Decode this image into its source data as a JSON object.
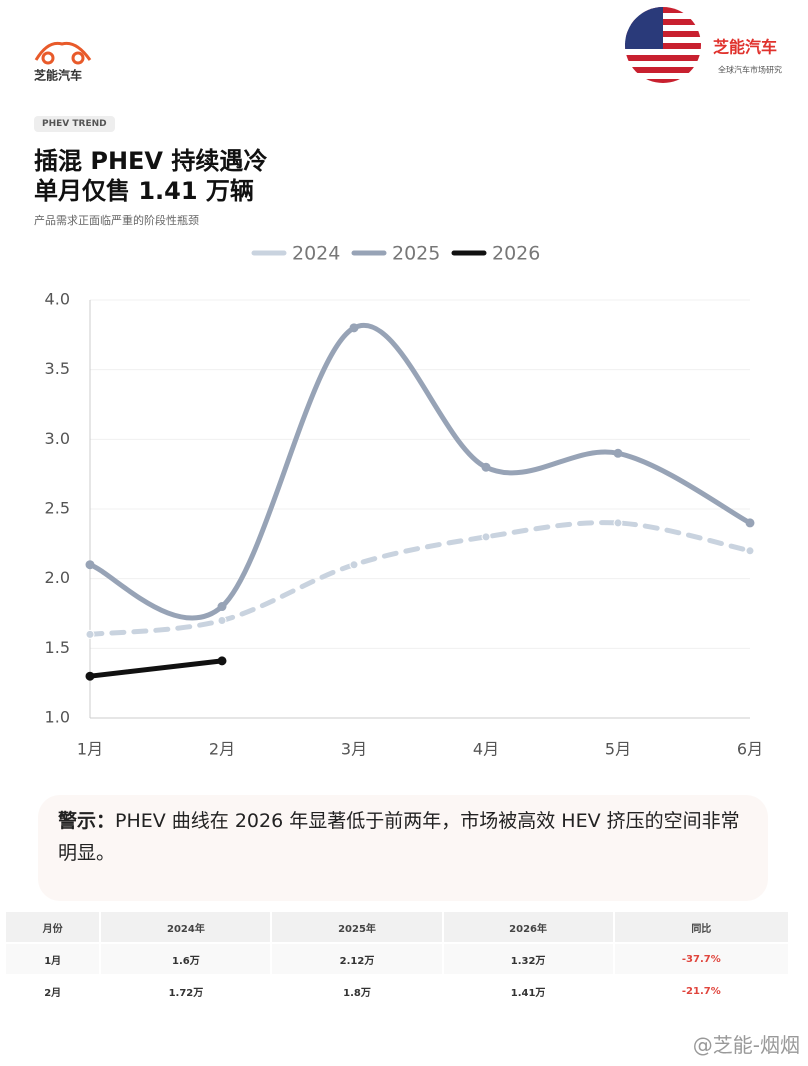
{
  "header": {
    "logo_text": "芝能汽车",
    "brand": "芝能汽车",
    "brand_sub": "全球汽车市场研究"
  },
  "tag": "PHEV TREND",
  "title_lines": [
    "插混 PHEV 持续遇冷",
    "单月仅售 1.41 万辆"
  ],
  "subtitle": "产品需求正面临严重的阶段性瓶颈",
  "chart_data": {
    "type": "line",
    "categories": [
      "1月",
      "2月",
      "3月",
      "4月",
      "5月",
      "6月"
    ],
    "series": [
      {
        "name": "2024",
        "color": "#c9d3df",
        "dashed": true,
        "values": [
          1.6,
          1.7,
          2.1,
          2.3,
          2.4,
          2.2
        ]
      },
      {
        "name": "2025",
        "color": "#97a3b6",
        "dashed": false,
        "values": [
          2.1,
          1.8,
          3.8,
          2.8,
          2.9,
          2.4
        ]
      },
      {
        "name": "2026",
        "color": "#111111",
        "dashed": false,
        "values": [
          1.3,
          1.41,
          null,
          null,
          null,
          null
        ]
      }
    ],
    "ylim": [
      1,
      4
    ],
    "yticks": [
      {
        "value": 1,
        "label": "1.0"
      },
      {
        "value": 1.5,
        "label": "1.5"
      },
      {
        "value": 2,
        "label": "2.0"
      },
      {
        "value": 2.5,
        "label": "2.5"
      },
      {
        "value": 3,
        "label": "3.0"
      },
      {
        "value": 3.5,
        "label": "3.5"
      },
      {
        "value": 4,
        "label": "4.0"
      }
    ],
    "grid": true,
    "legend": "top"
  },
  "warning": {
    "prefix": "警示：",
    "text": "PHEV 曲线在 2026 年显著低于前两年，市场被高效 HEV 挤压的空间非常明显。"
  },
  "table": {
    "header": [
      "月份",
      "2024年",
      "2025年",
      "2026年",
      "同比"
    ],
    "rows": [
      [
        "1月",
        "1.6万",
        "2.12万",
        "1.32万",
        "-37.7%"
      ],
      [
        "2月",
        "1.72万",
        "1.8万",
        "1.41万",
        "-21.7%"
      ]
    ]
  },
  "watermark": "@芝能-烟烟"
}
